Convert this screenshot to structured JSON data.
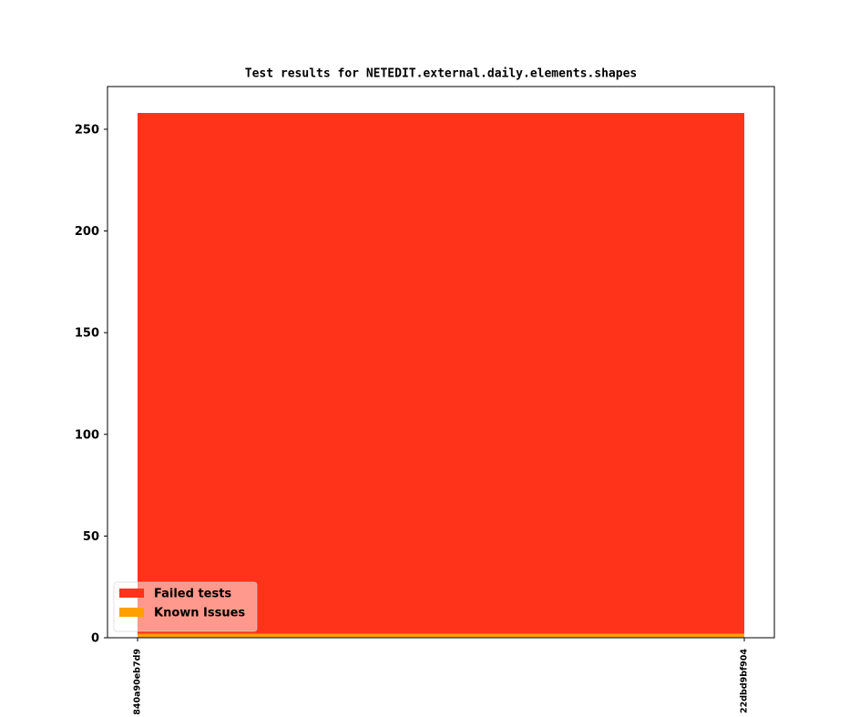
{
  "chart_data": {
    "type": "area",
    "stacked": true,
    "title": "Test results for NETEDIT.external.daily.elements.shapes",
    "categories": [
      "840a90eb7d9",
      "22dbd9bf904"
    ],
    "series": [
      {
        "name": "Failed tests",
        "color": "#ff321a",
        "values": [
          256,
          256
        ]
      },
      {
        "name": "Known Issues",
        "color": "#ff9f00",
        "values": [
          2,
          2
        ]
      }
    ],
    "ylim": [
      0,
      271
    ],
    "yticks": [
      0,
      50,
      100,
      150,
      200,
      250
    ],
    "grid": false,
    "legend": "lower left"
  }
}
